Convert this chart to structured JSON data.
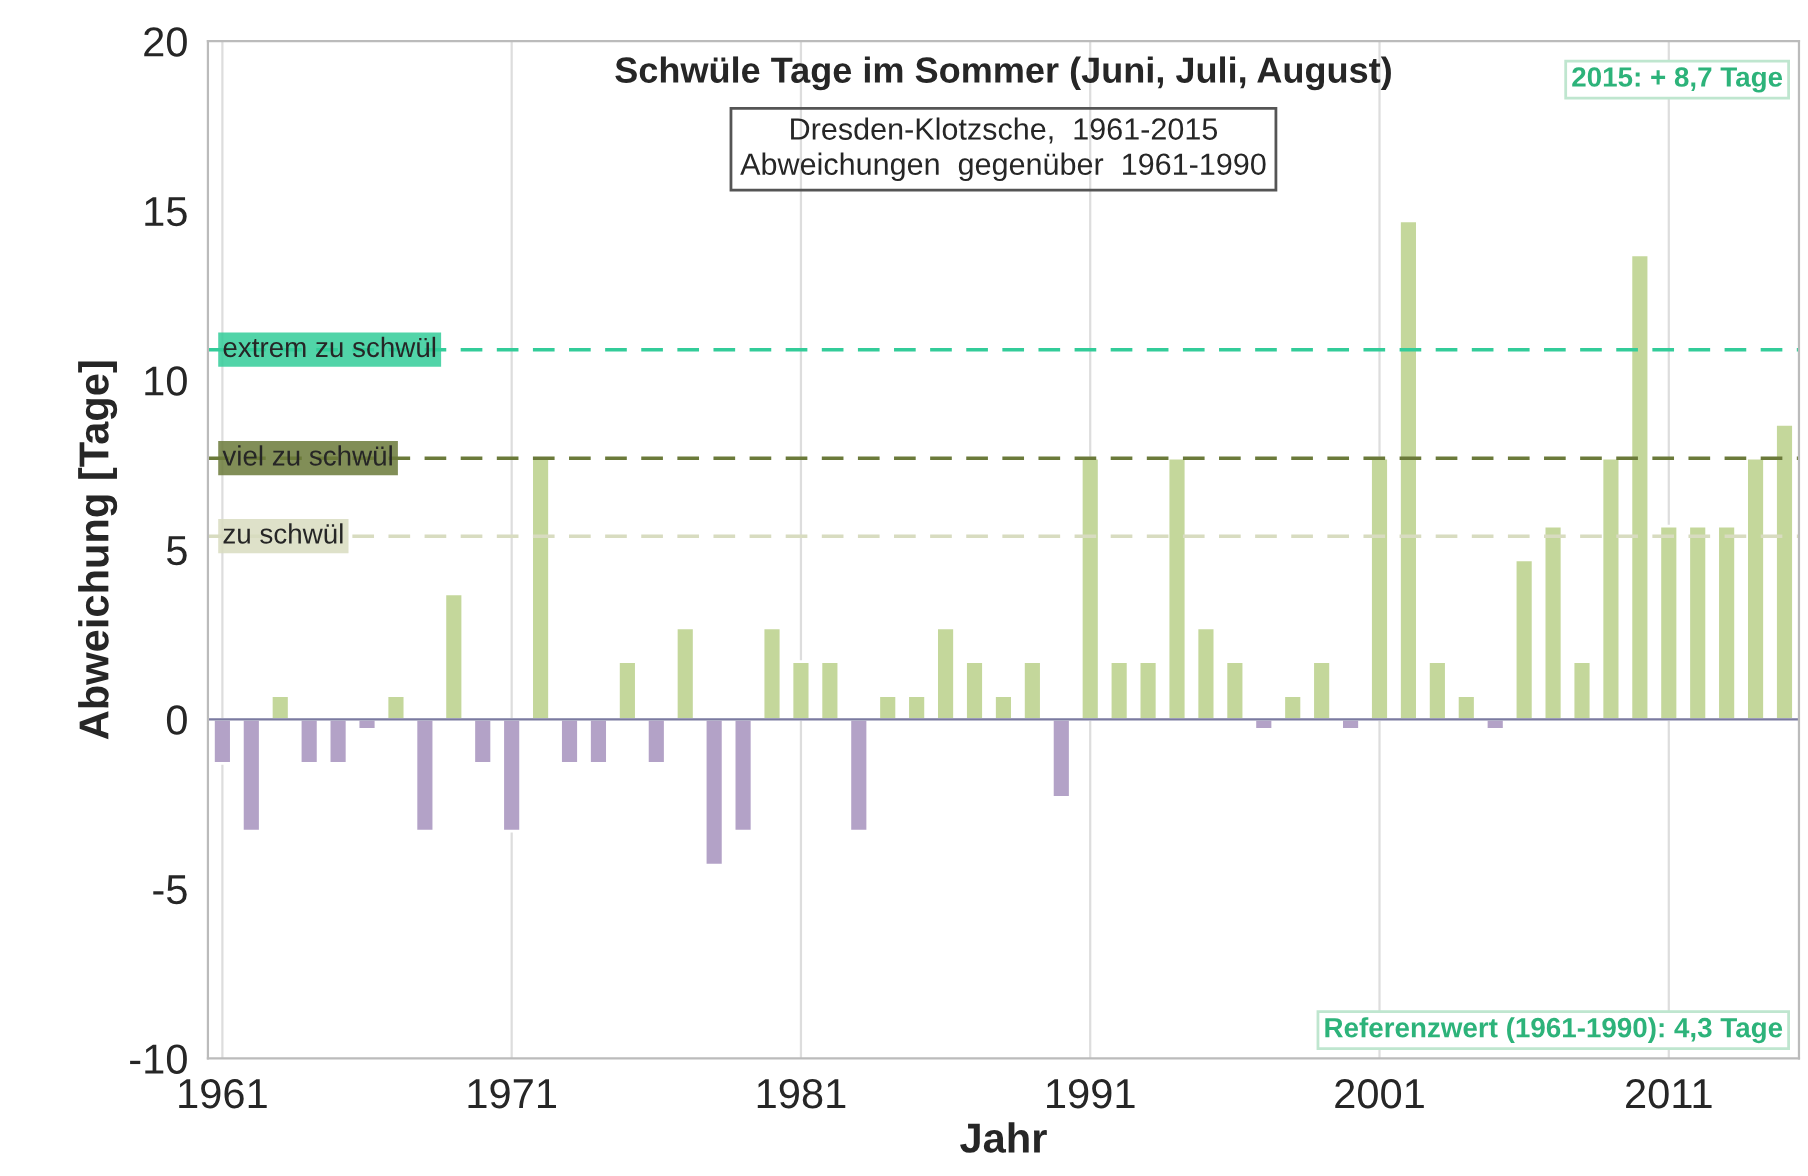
{
  "chart_data": {
    "type": "bar",
    "title": "Schwüle Tage im Sommer (Juni, Juli, August)",
    "subtitle": "Dresden-Klotzsche,  1961-2015\nAbweichungen  gegenüber  1961-1990",
    "xlabel": "Jahr",
    "ylabel": "Abweichung [Tage]",
    "categories": [
      "1961",
      null,
      null,
      null,
      null,
      null,
      null,
      null,
      null,
      null,
      "1971",
      null,
      null,
      null,
      null,
      null,
      null,
      null,
      null,
      null,
      "1981",
      null,
      null,
      null,
      null,
      null,
      null,
      null,
      null,
      null,
      "1991",
      null,
      null,
      null,
      null,
      null,
      null,
      null,
      null,
      null,
      "2001",
      null,
      null,
      null,
      null,
      null,
      null,
      null,
      null,
      null,
      "2011",
      null,
      null,
      null,
      null
    ],
    "values": [
      -1.3,
      -3.3,
      0.7,
      -1.3,
      -1.3,
      -0.3,
      0.7,
      -3.3,
      3.7,
      -1.3,
      -3.3,
      7.7,
      -1.3,
      -1.3,
      1.7,
      -1.3,
      2.7,
      -4.3,
      -3.3,
      2.7,
      1.7,
      1.7,
      -3.3,
      0.7,
      0.7,
      2.7,
      1.7,
      0.7,
      1.7,
      -2.3,
      7.7,
      1.7,
      1.7,
      7.7,
      2.7,
      1.7,
      -0.3,
      0.7,
      1.7,
      -0.3,
      7.7,
      14.7,
      1.7,
      0.7,
      -0.3,
      4.7,
      5.7,
      1.7,
      7.7,
      13.7,
      5.7,
      5.7,
      5.7,
      7.7,
      8.7
    ],
    "colors": [
      "#b3a2c7",
      "#b3a2c7",
      "#c4d79b",
      "#b3a2c7",
      "#b3a2c7",
      "#b3a2c7",
      "#c4d79b",
      "#b3a2c7",
      "#c4d79b",
      "#b3a2c7",
      "#b3a2c7",
      "#c4d79b",
      "#b3a2c7",
      "#b3a2c7",
      "#c4d79b",
      "#b3a2c7",
      "#c4d79b",
      "#b3a2c7",
      "#b3a2c7",
      "#c4d79b",
      "#c4d79b",
      "#c4d79b",
      "#b3a2c7",
      "#c4d79b",
      "#c4d79b",
      "#c4d79b",
      "#c4d79b",
      "#c4d79b",
      "#c4d79b",
      "#b3a2c7",
      "#c4d79b",
      "#c4d79b",
      "#c4d79b",
      "#c4d79b",
      "#c4d79b",
      "#c4d79b",
      "#b3a2c7",
      "#c4d79b",
      "#c4d79b",
      "#b3a2c7",
      "#c4d79b",
      "#c4d79b",
      "#c4d79b",
      "#c4d79b",
      "#b3a2c7",
      "#c4d79b",
      "#c4d79b",
      "#c4d79b",
      "#c4d79b",
      "#c4d79b",
      "#c4d79b",
      "#c4d79b",
      "#c4d79b",
      "#c4d79b",
      "#c4d79b"
    ],
    "ylim": [
      -10,
      20
    ],
    "yticks": [
      -10,
      -5,
      0,
      5,
      10,
      15,
      20
    ],
    "ref_lines": [
      {
        "axis": "y",
        "value": 10.9,
        "label": "extrem zu schwül",
        "color": "#33cc99",
        "line_style": "dashed"
      },
      {
        "axis": "y",
        "value": 7.7,
        "label": "viel zu schwül",
        "color": "#6b7a3a",
        "line_style": "dashed"
      },
      {
        "axis": "y",
        "value": 5.4,
        "label": "zu schwül",
        "color": "#d8dcc0",
        "line_style": "dashed"
      }
    ],
    "annotations": [
      "2015: + 8,7 Tage",
      "Referenzwert (1961-1990): 4,3 Tage"
    ],
    "grid": "x"
  }
}
